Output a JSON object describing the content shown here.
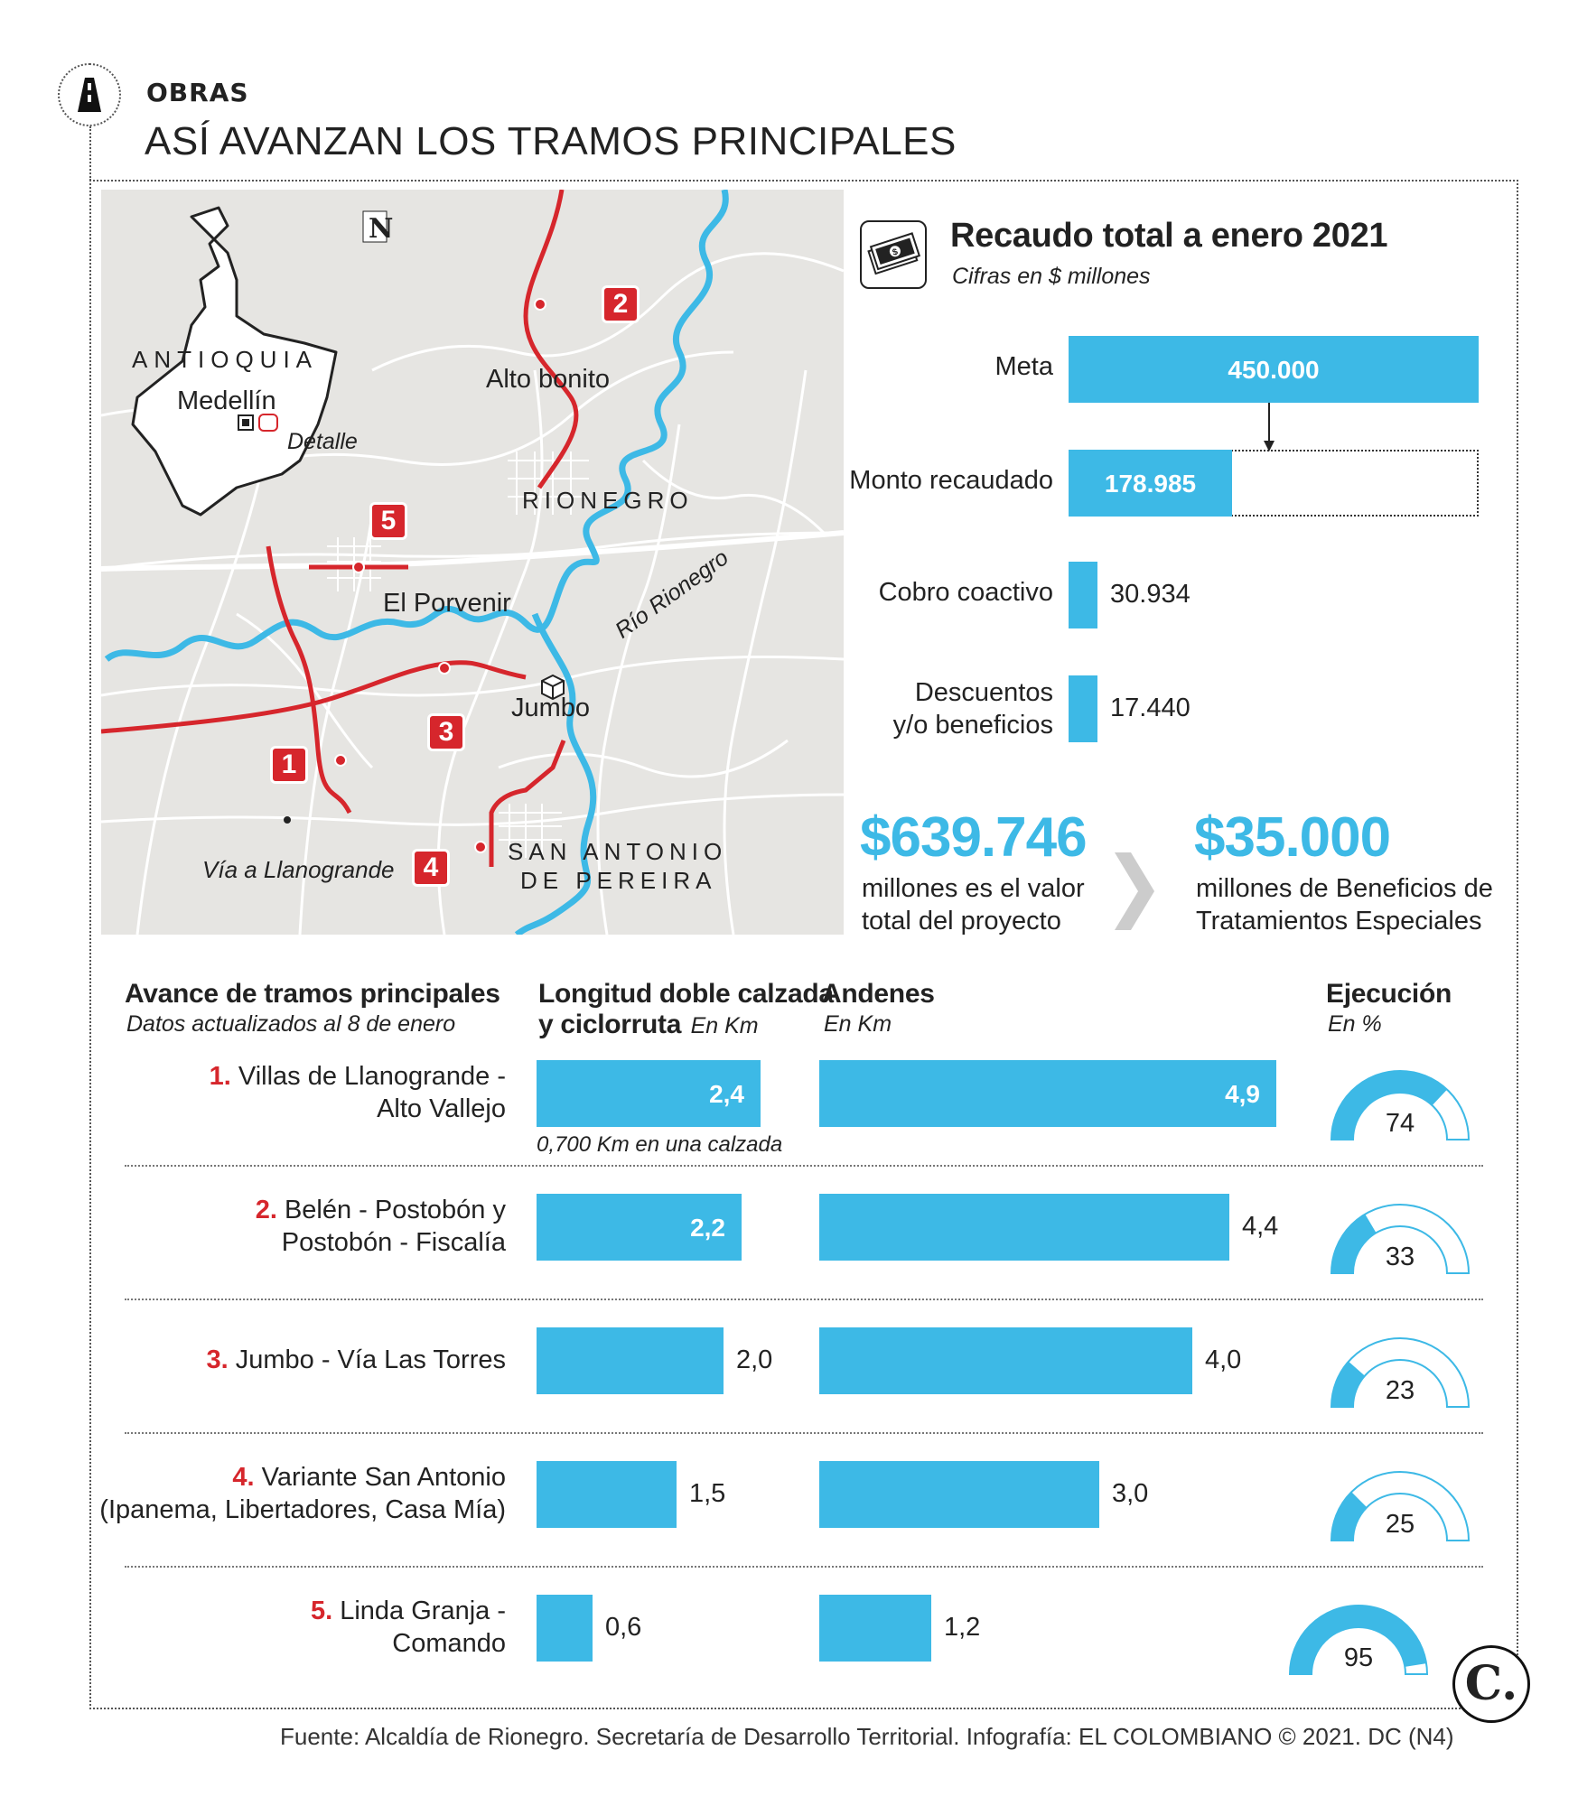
{
  "header": {
    "section": "OBRAS",
    "title": "ASÍ AVANZAN LOS TRAMOS PRINCIPALES"
  },
  "map": {
    "north_label": "N",
    "region": "ANTIOQUIA",
    "city": "Medellín",
    "detail_label": "Detalle",
    "places": {
      "alto_bonito": "Alto bonito",
      "rionegro": "RIONEGRO",
      "el_porvenir": "El Porvenir",
      "rio_rionegro": "Río Rionegro",
      "jumbo": "Jumbo",
      "via_llanogrande": "Vía a Llanogrande",
      "san_antonio_1": "SAN ANTONIO",
      "san_antonio_2": "DE PEREIRA"
    },
    "markers": [
      "1",
      "2",
      "3",
      "4",
      "5"
    ],
    "colors": {
      "road": "#d6262c",
      "river": "#3db9e6",
      "land": "#e6e5e2"
    }
  },
  "collection": {
    "icon": "money-icon",
    "title": "Recaudo total a enero 2021",
    "subtitle": "Cifras en $ millones",
    "max": 450000
  },
  "chart_data": [
    {
      "type": "bar",
      "title": "Recaudo total a enero 2021",
      "subtitle": "Cifras en $ millones",
      "categories": [
        "Meta",
        "Monto recaudado",
        "Cobro coactivo",
        "Descuentos y/o beneficios"
      ],
      "values": [
        450000,
        178985,
        30934,
        17440
      ],
      "value_labels": [
        "450.000",
        "178.985",
        "30.934",
        "17.440"
      ]
    },
    {
      "type": "bar",
      "title": "Avance de tramos principales",
      "subtitle": "Datos actualizados al 8 de enero",
      "categories": [
        "1. Villas de Llanogrande - Alto Vallejo",
        "2. Belén - Postobón y Postobón - Fiscalía",
        "3. Jumbo - Vía Las Torres",
        "4. Variante San Antonio (Ipanema, Libertadores, Casa Mía)",
        "5. Linda Granja - Comando"
      ],
      "series": [
        {
          "name": "Longitud doble calzada y ciclorruta",
          "unit": "En Km",
          "values": [
            2.4,
            2.2,
            2.0,
            1.5,
            0.6
          ]
        },
        {
          "name": "Andenes",
          "unit": "En Km",
          "values": [
            4.9,
            4.4,
            4.0,
            3.0,
            1.2
          ]
        },
        {
          "name": "Ejecución",
          "unit": "En %",
          "values": [
            74,
            33,
            23,
            25,
            95
          ]
        }
      ]
    }
  ],
  "bars_top": [
    {
      "label": "Meta",
      "value": 450000,
      "text": "450.000",
      "inside": true
    },
    {
      "label": "Monto recaudado",
      "value": 178985,
      "text": "178.985",
      "inside": true,
      "boxed": true
    },
    {
      "label": "Cobro coactivo",
      "value": 30934,
      "text": "30.934",
      "inside": false
    },
    {
      "label_1": "Descuentos",
      "label_2": "y/o beneficios",
      "value": 17440,
      "text": "17.440",
      "inside": false
    }
  ],
  "totals": {
    "project_value": "$639.746",
    "project_text_1": "millones es el valor",
    "project_text_2": "total del proyecto",
    "benefits_value": "$35.000",
    "benefits_text_1": "millones de Beneficios de",
    "benefits_text_2": "Tratamientos Especiales"
  },
  "sections_table": {
    "col1_title": "Avance de tramos principales",
    "col1_sub": "Datos actualizados al 8 de enero",
    "col2_title_1": "Longitud doble calzada",
    "col2_title_2": "y ciclorruta",
    "col2_unit": "En Km",
    "col3_title": "Andenes",
    "col3_unit": "En Km",
    "col4_title": "Ejecución",
    "col4_unit": "En %",
    "length_max": 2.4,
    "sidewalk_max": 4.9,
    "rows": [
      {
        "num": "1.",
        "name_1": "Villas de Llanogrande -",
        "name_2": "Alto Vallejo",
        "length": 2.4,
        "length_text": "2,4",
        "length_inside": true,
        "sidewalk": 4.9,
        "sidewalk_text": "4,9",
        "sidewalk_inside": true,
        "exec": 74,
        "exec_text": "74",
        "note": "0,700 Km en una calzada"
      },
      {
        "num": "2.",
        "name_1": "Belén - Postobón y",
        "name_2": "Postobón - Fiscalía",
        "length": 2.2,
        "length_text": "2,2",
        "length_inside": true,
        "sidewalk": 4.4,
        "sidewalk_text": "4,4",
        "sidewalk_inside": false,
        "exec": 33,
        "exec_text": "33"
      },
      {
        "num": "3.",
        "name_1": "Jumbo - Vía Las Torres",
        "name_2": "",
        "length": 2.0,
        "length_text": "2,0",
        "length_inside": false,
        "sidewalk": 4.0,
        "sidewalk_text": "4,0",
        "sidewalk_inside": false,
        "exec": 23,
        "exec_text": "23"
      },
      {
        "num": "4.",
        "name_1": "Variante San Antonio",
        "name_2": "(Ipanema, Libertadores, Casa Mía)",
        "length": 1.5,
        "length_text": "1,5",
        "length_inside": false,
        "sidewalk": 3.0,
        "sidewalk_text": "3,0",
        "sidewalk_inside": false,
        "exec": 25,
        "exec_text": "25"
      },
      {
        "num": "5.",
        "name_1": "Linda Granja -",
        "name_2": "Comando",
        "length": 0.6,
        "length_text": "0,6",
        "length_inside": false,
        "sidewalk": 1.2,
        "sidewalk_text": "1,2",
        "sidewalk_inside": false,
        "exec": 95,
        "exec_text": "95"
      }
    ]
  },
  "footer": {
    "source": "Fuente: Alcaldía de Rionegro. Secretaría de Desarrollo Territorial. Infografía: EL COLOMBIANO © 2021. DC (N4)",
    "logo": "C."
  }
}
